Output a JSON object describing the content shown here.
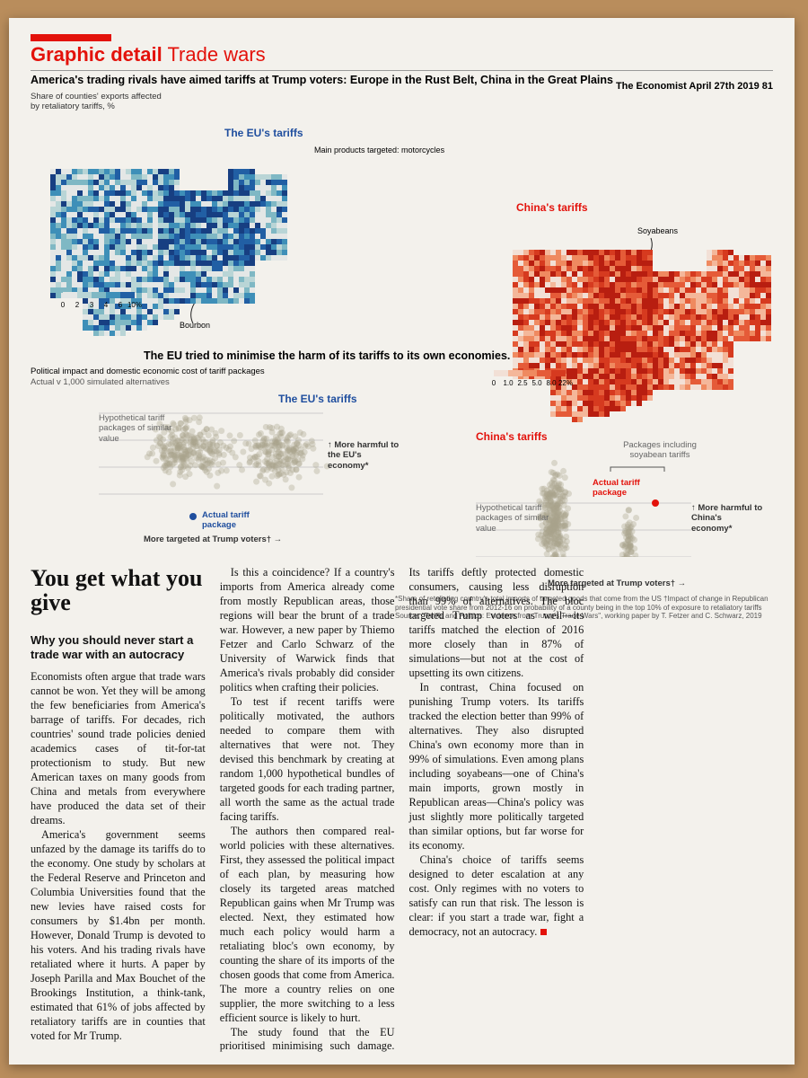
{
  "header": {
    "section": "Graphic detail",
    "topic": "Trade wars",
    "masthead": "The Economist April 27th 2019",
    "page": "81"
  },
  "chart1": {
    "title": "America's trading rivals have aimed tariffs at Trump voters: Europe in the Rust Belt, China in the Great Plains",
    "subtitle": "Share of counties' exports affected by retaliatory tariffs, %",
    "eu": {
      "title": "The EU's tariffs",
      "note": "Main products targeted: motorcycles",
      "note2": "Bourbon",
      "legend": [
        "0",
        "2",
        "3",
        "4",
        "6",
        "10%"
      ]
    },
    "china": {
      "title": "China's tariffs",
      "note": "Soyabeans",
      "legend": [
        "0",
        "1.0",
        "2.5",
        "5.0",
        "8.0",
        "22%"
      ]
    }
  },
  "chart2": {
    "title": "The EU tried to minimise the harm of its tariffs to its own economies. China showed no such concern",
    "subtitle": "Political impact and domestic economic cost of tariff packages",
    "subtitle2": "Actual v 1,000 simulated alternatives",
    "eu": {
      "title": "The EU's tariffs",
      "hypothetical": "Hypothetical tariff packages of similar value",
      "harm": "↑ More harmful to the EU's economy*",
      "actual": "Actual tariff package",
      "xlabel": "More targeted at Trump voters† →"
    },
    "china": {
      "title": "China's tariffs",
      "soy": "Packages including soyabean tariffs",
      "actual": "Actual tariff package",
      "hypothetical": "Hypothetical tariff packages of similar value",
      "harm": "↑ More harmful to China's economy*",
      "xlabel": "More targeted at Trump voters† →"
    },
    "footnote": "*Share of retaliating country's total imports of targeted goods that come from the US †Impact of change in Republican presidential vote share from 2012-16 on probability of a county being in the top 10% of exposure to retaliatory tariffs",
    "source": "Source: \"Tariffs and Politics: Evidence from Trump's Trade Wars\", working paper by T. Fetzer and C. Schwarz, 2019"
  },
  "article": {
    "headline": "You get what you give",
    "standfirst": "Why you should never start a trade war with an autocracy",
    "paragraphs": [
      "Economists often argue that trade wars cannot be won. Yet they will be among the few beneficiaries from America's barrage of tariffs. For decades, rich countries' sound trade policies denied academics cases of tit-for-tat protectionism to study. But new American taxes on many goods from China and metals from everywhere have produced the data set of their dreams.",
      "America's government seems unfazed by the damage its tariffs do to the economy. One study by scholars at the Federal Reserve and Princeton and Columbia Universities found that the new levies have raised costs for consumers by $1.4bn per month. However, Donald Trump is devoted to his voters. And his trading rivals have retaliated where it hurts. A paper by Joseph Parilla and Max Bouchet of the Brookings Institution, a think-tank, estimated that 61% of jobs affected by retaliatory tariffs are in counties that voted for Mr Trump.",
      "Is this a coincidence? If a country's imports from America already come from mostly Republican areas, those regions will bear the brunt of a trade war. However, a new paper by Thiemo Fetzer and Carlo Schwarz of the University of Warwick finds that America's rivals probably did consider politics when crafting their policies.",
      "To test if recent tariffs were politically motivated, the authors needed to compare them with alternatives that were not. They devised this benchmark by creating at random 1,000 hypothetical bundles of targeted goods for each trading partner, all worth the same as the actual trade facing tariffs.",
      "The authors then compared real-world policies with these alternatives. First, they assessed the political impact of each plan, by measuring how closely its targeted areas matched Republican gains when Mr Trump was elected. Next, they estimated how much each policy would harm a retaliating bloc's own economy, by counting the share of its imports of the chosen goods that come from America. The more a country relies on one supplier, the more switching to a less efficient source is likely to hurt.",
      "The study found that the EU prioritised minimising such damage. Its tariffs deftly protected domestic consumers, causing less disruption than 99% of alternatives. The bloc targeted Trump voters as well—its tariffs matched the election of 2016 more closely than in 87% of simulations—but not at the cost of upsetting its own citizens.",
      "In contrast, China focused on punishing Trump voters. Its tariffs tracked the election better than 99% of alternatives. They also disrupted China's own economy more than in 99% of simulations. Even among plans including soyabeans—one of China's main imports, grown mostly in Republican areas—China's policy was just slightly more politically targeted than similar options, but far worse for its economy.",
      "China's choice of tariffs seems designed to deter escalation at any cost. Only regimes with no voters to satisfy can run that risk. The lesson is clear: if you start a trade war, fight a democracy, not an autocracy."
    ]
  }
}
